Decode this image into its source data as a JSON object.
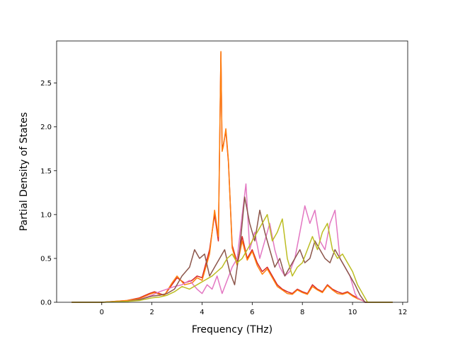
{
  "chart_data": {
    "type": "line",
    "title": "",
    "xlabel": "Frequency (THz)",
    "ylabel": "Partial Density of States",
    "xlim": [
      -1.8,
      12.2
    ],
    "ylim": [
      0.0,
      2.98
    ],
    "xticks": [
      0,
      2,
      4,
      6,
      8,
      10,
      12
    ],
    "yticks": [
      0.0,
      0.5,
      1.0,
      1.5,
      2.0,
      2.5
    ],
    "xtick_labels": [
      "0",
      "2",
      "4",
      "6",
      "8",
      "10",
      "12"
    ],
    "ytick_labels": [
      "0.0",
      "0.5",
      "1.0",
      "1.5",
      "2.0",
      "2.5"
    ],
    "grid": false,
    "legend": "none",
    "series": [
      {
        "color": "#d62728",
        "x": [
          -1.2,
          0.0,
          1.0,
          1.5,
          1.9,
          2.1,
          2.3,
          2.5,
          2.8,
          3.0,
          3.3,
          3.6,
          3.8,
          4.0,
          4.3,
          4.5,
          4.65,
          4.75,
          4.8,
          4.85,
          4.95,
          5.05,
          5.2,
          5.4,
          5.6,
          5.8,
          6.0,
          6.2,
          6.4,
          6.6,
          6.8,
          7.0,
          7.2,
          7.4,
          7.6,
          7.8,
          8.0,
          8.2,
          8.4,
          8.6,
          8.8,
          9.0,
          9.2,
          9.4,
          9.6,
          9.8,
          10.0,
          10.2,
          10.4,
          10.5,
          11.0,
          11.6
        ],
        "y": [
          0.0,
          0.0,
          0.02,
          0.05,
          0.1,
          0.12,
          0.1,
          0.08,
          0.2,
          0.28,
          0.22,
          0.25,
          0.3,
          0.28,
          0.6,
          1.0,
          0.7,
          2.85,
          1.75,
          1.8,
          1.95,
          1.6,
          0.65,
          0.45,
          0.75,
          0.5,
          0.6,
          0.45,
          0.35,
          0.4,
          0.3,
          0.2,
          0.15,
          0.12,
          0.1,
          0.15,
          0.12,
          0.1,
          0.2,
          0.15,
          0.12,
          0.2,
          0.15,
          0.12,
          0.1,
          0.12,
          0.08,
          0.05,
          0.02,
          0.0,
          0.0,
          0.0
        ]
      },
      {
        "color": "#ff7f0e",
        "x": [
          -1.2,
          0.0,
          1.0,
          1.5,
          1.9,
          2.1,
          2.3,
          2.5,
          2.8,
          3.0,
          3.3,
          3.6,
          3.8,
          4.0,
          4.3,
          4.5,
          4.65,
          4.75,
          4.8,
          4.85,
          4.95,
          5.05,
          5.2,
          5.4,
          5.6,
          5.8,
          6.0,
          6.2,
          6.4,
          6.6,
          6.8,
          7.0,
          7.2,
          7.4,
          7.6,
          7.8,
          8.0,
          8.2,
          8.4,
          8.6,
          8.8,
          9.0,
          9.2,
          9.4,
          9.6,
          9.8,
          10.0,
          10.2,
          10.4,
          10.5,
          11.0,
          11.6
        ],
        "y": [
          0.0,
          0.0,
          0.02,
          0.04,
          0.09,
          0.11,
          0.09,
          0.08,
          0.22,
          0.3,
          0.2,
          0.22,
          0.28,
          0.25,
          0.55,
          1.05,
          0.75,
          2.86,
          1.72,
          1.78,
          1.98,
          1.62,
          0.62,
          0.42,
          0.7,
          0.48,
          0.58,
          0.42,
          0.32,
          0.38,
          0.28,
          0.18,
          0.14,
          0.1,
          0.09,
          0.14,
          0.11,
          0.09,
          0.18,
          0.14,
          0.11,
          0.19,
          0.14,
          0.1,
          0.09,
          0.11,
          0.07,
          0.04,
          0.02,
          0.0,
          0.0,
          0.0
        ]
      },
      {
        "color": "#e377c2",
        "x": [
          -1.2,
          0.0,
          1.0,
          1.5,
          2.0,
          2.3,
          2.6,
          2.9,
          3.2,
          3.5,
          3.8,
          4.0,
          4.2,
          4.4,
          4.6,
          4.8,
          5.0,
          5.2,
          5.4,
          5.6,
          5.75,
          5.9,
          6.1,
          6.3,
          6.5,
          6.7,
          6.9,
          7.1,
          7.3,
          7.5,
          7.7,
          7.9,
          8.1,
          8.3,
          8.5,
          8.7,
          8.9,
          9.1,
          9.3,
          9.5,
          9.7,
          9.9,
          10.1,
          10.2,
          10.4,
          10.5,
          11.0,
          11.6
        ],
        "y": [
          0.0,
          0.0,
          0.01,
          0.03,
          0.08,
          0.12,
          0.15,
          0.18,
          0.2,
          0.25,
          0.15,
          0.1,
          0.2,
          0.15,
          0.3,
          0.1,
          0.25,
          0.4,
          0.5,
          1.0,
          1.35,
          0.6,
          0.8,
          0.5,
          0.7,
          0.9,
          0.6,
          0.4,
          0.3,
          0.35,
          0.5,
          0.8,
          1.1,
          0.9,
          1.05,
          0.7,
          0.6,
          0.9,
          1.05,
          0.5,
          0.4,
          0.3,
          0.1,
          0.05,
          0.02,
          0.0,
          0.0,
          0.0
        ]
      },
      {
        "color": "#8c564b",
        "x": [
          -1.2,
          0.0,
          1.0,
          1.5,
          2.0,
          2.3,
          2.6,
          2.9,
          3.2,
          3.5,
          3.7,
          3.9,
          4.1,
          4.3,
          4.5,
          4.7,
          4.9,
          5.1,
          5.3,
          5.5,
          5.7,
          5.9,
          6.1,
          6.3,
          6.5,
          6.7,
          6.9,
          7.1,
          7.3,
          7.5,
          7.7,
          7.9,
          8.1,
          8.3,
          8.5,
          8.7,
          8.9,
          9.1,
          9.3,
          9.5,
          9.7,
          9.9,
          10.1,
          10.3,
          10.5,
          11.0,
          11.6
        ],
        "y": [
          0.0,
          0.0,
          0.01,
          0.03,
          0.07,
          0.08,
          0.1,
          0.15,
          0.3,
          0.4,
          0.6,
          0.5,
          0.55,
          0.3,
          0.4,
          0.5,
          0.6,
          0.35,
          0.2,
          0.6,
          1.2,
          0.9,
          0.7,
          1.05,
          0.8,
          0.6,
          0.4,
          0.5,
          0.3,
          0.4,
          0.5,
          0.6,
          0.45,
          0.5,
          0.7,
          0.6,
          0.5,
          0.45,
          0.6,
          0.5,
          0.4,
          0.3,
          0.2,
          0.08,
          0.0,
          0.0,
          0.0
        ]
      },
      {
        "color": "#bcbd22",
        "x": [
          -1.2,
          0.0,
          1.0,
          1.5,
          2.0,
          2.3,
          2.6,
          2.9,
          3.2,
          3.5,
          3.8,
          4.1,
          4.4,
          4.6,
          4.8,
          5.0,
          5.2,
          5.4,
          5.6,
          5.8,
          6.0,
          6.2,
          6.4,
          6.6,
          6.8,
          7.0,
          7.2,
          7.4,
          7.6,
          7.8,
          8.0,
          8.2,
          8.4,
          8.6,
          8.8,
          9.0,
          9.2,
          9.4,
          9.6,
          9.8,
          10.0,
          10.2,
          10.4,
          10.6,
          11.0,
          11.6
        ],
        "y": [
          0.0,
          0.0,
          0.01,
          0.02,
          0.05,
          0.06,
          0.08,
          0.12,
          0.18,
          0.15,
          0.2,
          0.25,
          0.3,
          0.35,
          0.4,
          0.5,
          0.55,
          0.45,
          0.5,
          0.6,
          0.7,
          0.8,
          0.9,
          1.0,
          0.7,
          0.8,
          0.95,
          0.5,
          0.3,
          0.4,
          0.45,
          0.6,
          0.75,
          0.6,
          0.8,
          0.9,
          0.6,
          0.5,
          0.55,
          0.45,
          0.35,
          0.2,
          0.1,
          0.0,
          0.0,
          0.0
        ]
      }
    ]
  }
}
